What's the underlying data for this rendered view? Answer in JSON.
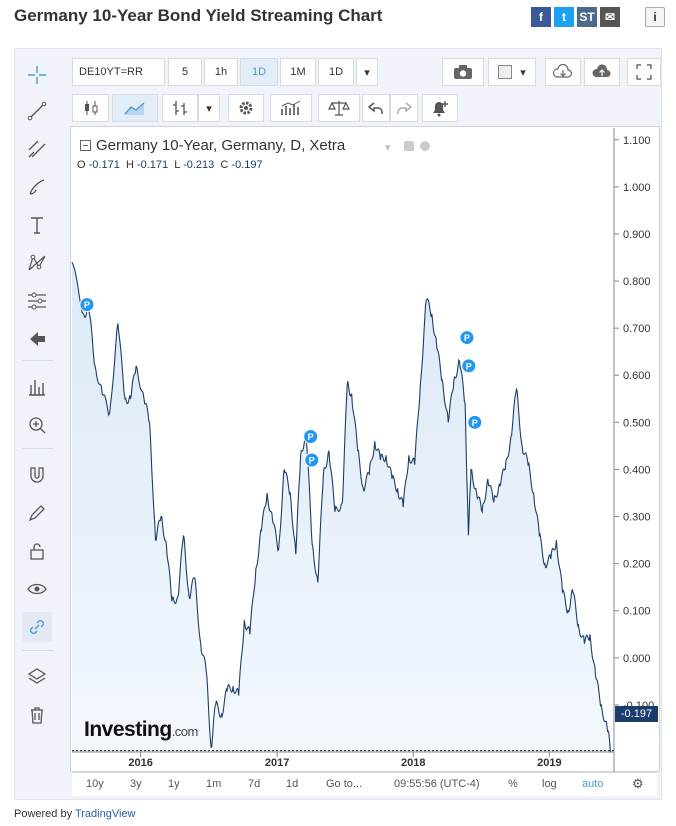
{
  "page": {
    "title": "Germany 10-Year Bond Yield Streaming Chart",
    "share": [
      {
        "name": "facebook",
        "glyph": "f",
        "color": "#3b5998"
      },
      {
        "name": "twitter",
        "glyph": "t",
        "color": "#1da1f2"
      },
      {
        "name": "stocktwits",
        "glyph": "ST",
        "color": "#4b6b8a"
      },
      {
        "name": "email",
        "glyph": "✉",
        "color": "#555555"
      }
    ],
    "info_glyph": "i",
    "powered_by": "Powered by",
    "powered_link": "TradingView"
  },
  "toolbar": {
    "symbol": "DE10YT=RR",
    "intervals": [
      "5",
      "1h",
      "1D",
      "1M",
      "1D"
    ],
    "active_interval_index": 2
  },
  "legend": {
    "title": "Germany 10-Year, Germany, D, Xetra",
    "o_label": "O",
    "o_value": "-0.171",
    "h_label": "H",
    "h_value": "-0.171",
    "l_label": "L",
    "l_value": "-0.213",
    "c_label": "C",
    "c_value": "-0.197"
  },
  "logo": {
    "main": "Investing",
    "suffix": ".com"
  },
  "bottom_bar": {
    "ranges": [
      "10y",
      "3y",
      "1y",
      "1m",
      "7d",
      "1d"
    ],
    "goto": "Go to...",
    "time": "09:55:56 (UTC-4)",
    "percent": "%",
    "log": "log",
    "auto": "auto"
  },
  "colors": {
    "line": "#1b3d6e",
    "area": "#dbe8f7",
    "marker": "#2196f3",
    "accent": "#4b9ad6"
  },
  "chart_data": {
    "type": "area",
    "title": "Germany 10-Year, Germany, D, Xetra",
    "xlabel": "",
    "ylabel": "",
    "x_ticks": [
      "2016",
      "2017",
      "2018",
      "2019"
    ],
    "y_ticks": [
      1.1,
      1.0,
      0.9,
      0.8,
      0.7,
      0.6,
      0.5,
      0.4,
      0.3,
      0.2,
      0.1,
      0.0,
      -0.1
    ],
    "y_tick_labels": [
      "1.100",
      "1.000",
      "0.900",
      "0.800",
      "0.700",
      "0.600",
      "0.500",
      "0.400",
      "0.300",
      "0.200",
      "0.100",
      "0.000",
      "-0.100"
    ],
    "ylim": [
      -0.2,
      1.125
    ],
    "last_value": -0.197,
    "last_value_label": "-0.197",
    "grid": false,
    "series": [
      {
        "name": "",
        "x": [
          "2015-07-01",
          "2015-08-01",
          "2015-08-15",
          "2015-09-01",
          "2015-09-20",
          "2015-10-10",
          "2015-11-01",
          "2015-11-20",
          "2015-12-05",
          "2015-12-20",
          "2016-01-10",
          "2016-01-25",
          "2016-02-10",
          "2016-02-25",
          "2016-03-10",
          "2016-03-25",
          "2016-04-10",
          "2016-04-25",
          "2016-05-10",
          "2016-05-25",
          "2016-06-10",
          "2016-06-25",
          "2016-07-08",
          "2016-07-20",
          "2016-08-05",
          "2016-08-20",
          "2016-09-05",
          "2016-09-20",
          "2016-10-05",
          "2016-10-20",
          "2016-11-05",
          "2016-11-20",
          "2016-12-05",
          "2016-12-20",
          "2017-01-05",
          "2017-01-20",
          "2017-02-05",
          "2017-02-20",
          "2017-03-05",
          "2017-03-20",
          "2017-04-05",
          "2017-04-20",
          "2017-05-05",
          "2017-05-20",
          "2017-06-05",
          "2017-06-25",
          "2017-07-08",
          "2017-07-20",
          "2017-08-05",
          "2017-08-20",
          "2017-09-05",
          "2017-09-20",
          "2017-10-05",
          "2017-10-20",
          "2017-11-05",
          "2017-11-20",
          "2017-12-05",
          "2017-12-20",
          "2018-01-05",
          "2018-01-20",
          "2018-02-05",
          "2018-02-20",
          "2018-03-05",
          "2018-03-20",
          "2018-04-05",
          "2018-04-20",
          "2018-05-05",
          "2018-05-20",
          "2018-05-29",
          "2018-06-05",
          "2018-06-20",
          "2018-07-05",
          "2018-07-20",
          "2018-08-05",
          "2018-08-20",
          "2018-09-05",
          "2018-09-20",
          "2018-10-05",
          "2018-10-20",
          "2018-11-05",
          "2018-11-20",
          "2018-12-05",
          "2018-12-20",
          "2019-01-05",
          "2019-01-20",
          "2019-02-05",
          "2019-02-20",
          "2019-03-05",
          "2019-03-20",
          "2019-04-05",
          "2019-04-20",
          "2019-05-05",
          "2019-05-20",
          "2019-06-05",
          "2019-06-15"
        ],
        "y": [
          0.84,
          0.73,
          0.74,
          0.62,
          0.56,
          0.52,
          0.71,
          0.55,
          0.55,
          0.62,
          0.55,
          0.5,
          0.25,
          0.3,
          0.24,
          0.12,
          0.13,
          0.26,
          0.13,
          0.17,
          0.03,
          -0.03,
          -0.19,
          -0.1,
          -0.12,
          -0.07,
          -0.06,
          -0.08,
          0.08,
          0.05,
          0.19,
          0.27,
          0.35,
          0.29,
          0.23,
          0.4,
          0.35,
          0.22,
          0.43,
          0.48,
          0.24,
          0.16,
          0.39,
          0.44,
          0.31,
          0.33,
          0.58,
          0.56,
          0.44,
          0.36,
          0.39,
          0.46,
          0.42,
          0.43,
          0.38,
          0.36,
          0.32,
          0.43,
          0.41,
          0.58,
          0.76,
          0.73,
          0.66,
          0.59,
          0.5,
          0.59,
          0.63,
          0.54,
          0.26,
          0.4,
          0.35,
          0.31,
          0.38,
          0.33,
          0.37,
          0.4,
          0.47,
          0.57,
          0.45,
          0.41,
          0.35,
          0.26,
          0.2,
          0.21,
          0.25,
          0.14,
          0.1,
          0.14,
          0.07,
          0.03,
          0.05,
          -0.04,
          -0.1,
          -0.15,
          -0.197
        ]
      }
    ],
    "markers": [
      {
        "label": "P",
        "x": "2015-08-10",
        "y": 0.75
      },
      {
        "label": "P",
        "x": "2017-04-01",
        "y": 0.47
      },
      {
        "label": "P",
        "x": "2017-04-04",
        "y": 0.42
      },
      {
        "label": "P",
        "x": "2018-05-25",
        "y": 0.68
      },
      {
        "label": "P",
        "x": "2018-05-30",
        "y": 0.62
      },
      {
        "label": "P",
        "x": "2018-06-15",
        "y": 0.5
      }
    ]
  }
}
